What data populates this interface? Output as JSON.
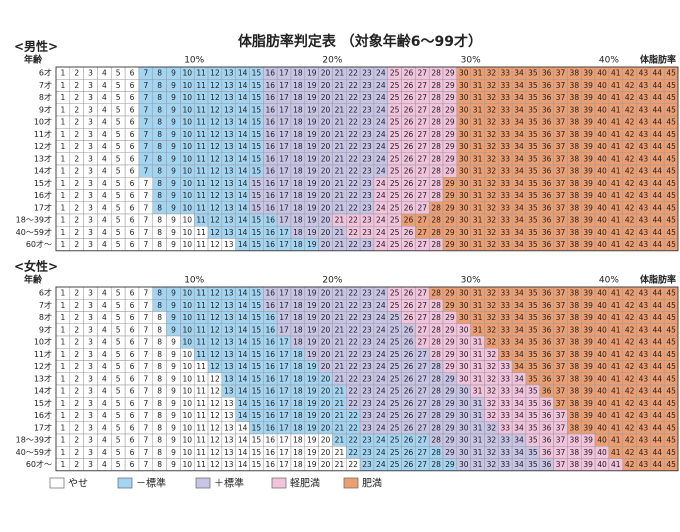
{
  "title": "体脂肪率判定表 （対象年齢6～99才）",
  "legend": [
    {
      "label": "やせ",
      "color": "#ffffff"
    },
    {
      "label": "－標準",
      "color": "#a3d4f1"
    },
    {
      "label": "＋標準",
      "color": "#c8c4e6"
    },
    {
      "label": "軽肥満",
      "color": "#f2c3dc"
    },
    {
      "label": "肥満",
      "color": "#ec9e73"
    }
  ],
  "tables": [
    {
      "label": "<男性>",
      "age_header": "年齢",
      "axis_label": "体脂肪率",
      "percent_marks": [
        {
          "value": 10,
          "label": "10%"
        },
        {
          "value": 20,
          "label": "20%"
        },
        {
          "value": 30,
          "label": "30%"
        },
        {
          "value": 40,
          "label": "40%"
        }
      ],
      "columns": [
        1,
        2,
        3,
        4,
        5,
        6,
        7,
        8,
        9,
        10,
        11,
        12,
        13,
        14,
        15,
        16,
        17,
        18,
        19,
        20,
        21,
        22,
        23,
        24,
        25,
        26,
        27,
        28,
        29,
        30,
        31,
        32,
        33,
        34,
        35,
        36,
        37,
        38,
        39,
        40,
        41,
        42,
        43,
        44,
        45
      ],
      "rows": [
        {
          "age": "6才",
          "bounds": [
            7,
            16,
            25,
            30
          ]
        },
        {
          "age": "7才",
          "bounds": [
            7,
            16,
            25,
            30
          ]
        },
        {
          "age": "8才",
          "bounds": [
            7,
            16,
            25,
            30
          ]
        },
        {
          "age": "9才",
          "bounds": [
            7,
            16,
            25,
            30
          ]
        },
        {
          "age": "10才",
          "bounds": [
            7,
            16,
            25,
            30
          ]
        },
        {
          "age": "11才",
          "bounds": [
            7,
            16,
            25,
            30
          ]
        },
        {
          "age": "12才",
          "bounds": [
            7,
            16,
            25,
            30
          ]
        },
        {
          "age": "13才",
          "bounds": [
            7,
            16,
            25,
            30
          ]
        },
        {
          "age": "14才",
          "bounds": [
            7,
            16,
            25,
            30
          ]
        },
        {
          "age": "15才",
          "bounds": [
            8,
            15,
            24,
            29
          ]
        },
        {
          "age": "16才",
          "bounds": [
            8,
            15,
            24,
            29
          ]
        },
        {
          "age": "17才",
          "bounds": [
            8,
            15,
            24,
            28
          ]
        },
        {
          "age": "18～39才",
          "bounds": [
            11,
            17,
            21,
            26
          ]
        },
        {
          "age": "40～59才",
          "bounds": [
            12,
            18,
            22,
            27
          ]
        },
        {
          "age": "60才～",
          "bounds": [
            14,
            20,
            24,
            29
          ]
        }
      ]
    },
    {
      "label": "<女性>",
      "age_header": "年齢",
      "axis_label": "体脂肪率",
      "percent_marks": [
        {
          "value": 10,
          "label": "10%"
        },
        {
          "value": 20,
          "label": "20%"
        },
        {
          "value": 30,
          "label": "30%"
        },
        {
          "value": 40,
          "label": "40%"
        }
      ],
      "columns": [
        1,
        2,
        3,
        4,
        5,
        6,
        7,
        8,
        9,
        10,
        11,
        12,
        13,
        14,
        15,
        16,
        17,
        18,
        19,
        20,
        21,
        22,
        23,
        24,
        25,
        26,
        27,
        28,
        29,
        30,
        31,
        32,
        33,
        34,
        35,
        36,
        37,
        38,
        39,
        40,
        41,
        42,
        43,
        44,
        45
      ],
      "rows": [
        {
          "age": "6才",
          "bounds": [
            8,
            16,
            25,
            28
          ]
        },
        {
          "age": "7才",
          "bounds": [
            8,
            16,
            25,
            29
          ]
        },
        {
          "age": "8才",
          "bounds": [
            9,
            17,
            26,
            30
          ]
        },
        {
          "age": "9才",
          "bounds": [
            9,
            17,
            27,
            31
          ]
        },
        {
          "age": "10才",
          "bounds": [
            10,
            18,
            27,
            32
          ]
        },
        {
          "age": "11才",
          "bounds": [
            11,
            19,
            28,
            33
          ]
        },
        {
          "age": "12才",
          "bounds": [
            12,
            20,
            29,
            34
          ]
        },
        {
          "age": "13才",
          "bounds": [
            13,
            21,
            30,
            35
          ]
        },
        {
          "age": "14才",
          "bounds": [
            13,
            22,
            31,
            36
          ]
        },
        {
          "age": "15才",
          "bounds": [
            14,
            22,
            32,
            37
          ]
        },
        {
          "age": "16才",
          "bounds": [
            14,
            23,
            32,
            38
          ]
        },
        {
          "age": "17才",
          "bounds": [
            15,
            23,
            33,
            38
          ]
        },
        {
          "age": "18～39才",
          "bounds": [
            21,
            28,
            35,
            40
          ]
        },
        {
          "age": "40～59才",
          "bounds": [
            22,
            29,
            36,
            41
          ]
        },
        {
          "age": "60才～",
          "bounds": [
            23,
            30,
            37,
            42
          ]
        }
      ]
    }
  ]
}
